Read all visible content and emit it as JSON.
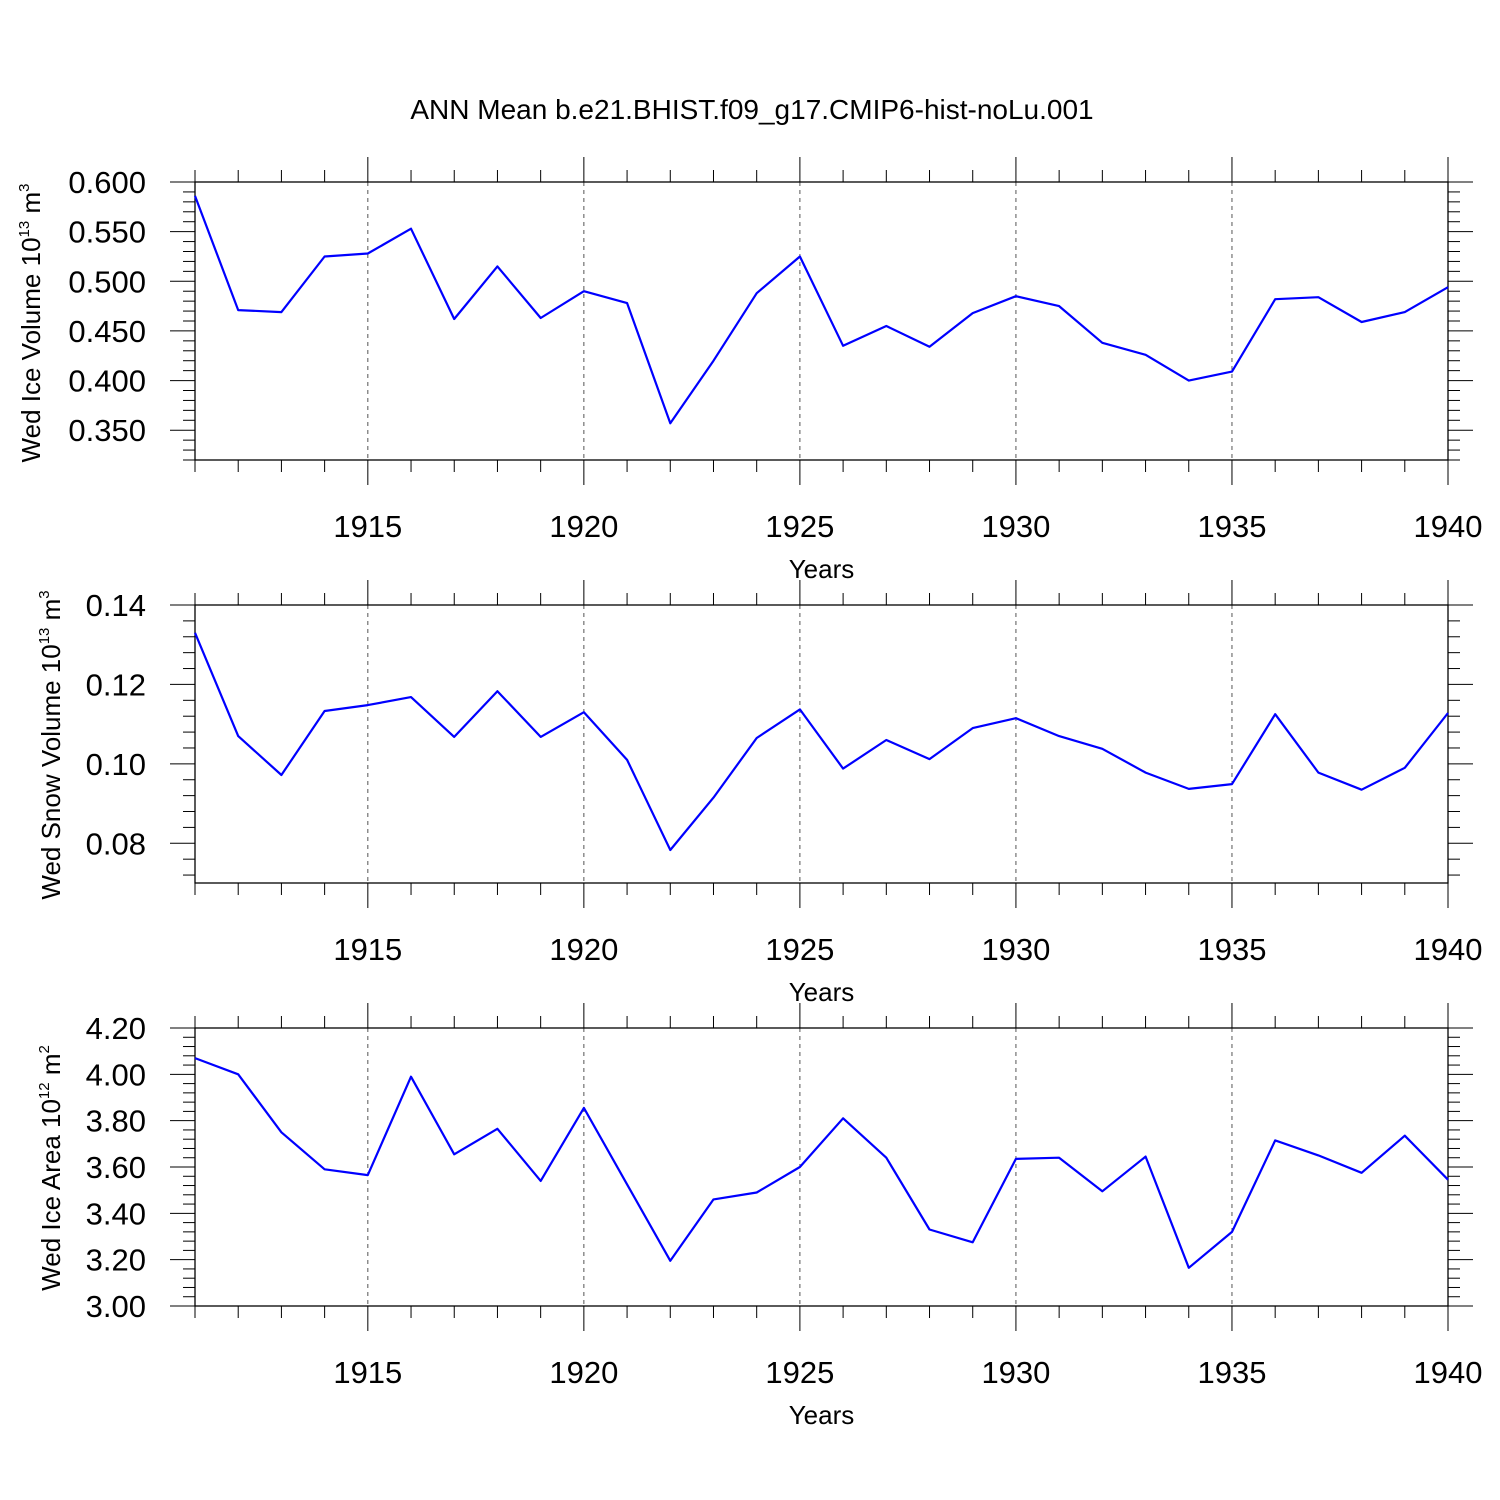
{
  "figure": {
    "title": "ANN Mean b.e21.BHIST.f09_g17.CMIP6-hist-noLu.001"
  },
  "chart_data": [
    {
      "type": "line",
      "title": "",
      "xlabel": "Years",
      "ylabel": {
        "text": "Wed Ice Volume 10",
        "exponent": "13",
        "unit": " m",
        "unit_exponent": "3"
      },
      "xlim": [
        1911,
        1940
      ],
      "ylim": [
        0.32,
        0.6
      ],
      "x_ticks": [
        1915,
        1920,
        1925,
        1930,
        1935,
        1940
      ],
      "y_ticks": [
        0.35,
        0.4,
        0.45,
        0.5,
        0.55,
        0.6
      ],
      "y_tick_labels": [
        "0.350",
        "0.400",
        "0.450",
        "0.500",
        "0.550",
        "0.600"
      ],
      "grid": "vertical dashed at major x ticks",
      "color": "#0000ff",
      "series": [
        {
          "x": [
            1911,
            1912,
            1913,
            1914,
            1915,
            1916,
            1917,
            1918,
            1919,
            1920,
            1921,
            1922,
            1923,
            1924,
            1925,
            1926,
            1927,
            1928,
            1929,
            1930,
            1931,
            1932,
            1933,
            1934,
            1935,
            1936,
            1937,
            1938,
            1939,
            1940
          ],
          "values": [
            0.586,
            0.471,
            0.469,
            0.525,
            0.528,
            0.553,
            0.462,
            0.515,
            0.463,
            0.49,
            0.478,
            0.357,
            0.42,
            0.488,
            0.525,
            0.435,
            0.455,
            0.434,
            0.468,
            0.485,
            0.475,
            0.438,
            0.426,
            0.4,
            0.409,
            0.482,
            0.484,
            0.459,
            0.469,
            0.494
          ]
        }
      ]
    },
    {
      "type": "line",
      "title": "",
      "xlabel": "Years",
      "ylabel": {
        "text": "Wed Snow Volume 10",
        "exponent": "13",
        "unit": " m",
        "unit_exponent": "3"
      },
      "xlim": [
        1911,
        1940
      ],
      "ylim": [
        0.07,
        0.14
      ],
      "x_ticks": [
        1915,
        1920,
        1925,
        1930,
        1935,
        1940
      ],
      "y_ticks": [
        0.08,
        0.1,
        0.12,
        0.14
      ],
      "y_tick_labels": [
        "0.08",
        "0.10",
        "0.12",
        "0.14"
      ],
      "grid": "vertical dashed at major x ticks",
      "color": "#0000ff",
      "series": [
        {
          "x": [
            1911,
            1912,
            1913,
            1914,
            1915,
            1916,
            1917,
            1918,
            1919,
            1920,
            1921,
            1922,
            1923,
            1924,
            1925,
            1926,
            1927,
            1928,
            1929,
            1930,
            1931,
            1932,
            1933,
            1934,
            1935,
            1936,
            1937,
            1938,
            1939,
            1940
          ],
          "values": [
            0.133,
            0.107,
            0.0972,
            0.1133,
            0.1148,
            0.1168,
            0.1068,
            0.1183,
            0.1068,
            0.113,
            0.101,
            0.0783,
            0.0915,
            0.1065,
            0.1137,
            0.0988,
            0.106,
            0.1012,
            0.109,
            0.1115,
            0.107,
            0.1038,
            0.0978,
            0.0937,
            0.0949,
            0.1125,
            0.0978,
            0.0935,
            0.099,
            0.1128
          ]
        }
      ]
    },
    {
      "type": "line",
      "title": "",
      "xlabel": "Years",
      "ylabel": {
        "text": "Wed Ice Area 10",
        "exponent": "12",
        "unit": " m",
        "unit_exponent": "2"
      },
      "xlim": [
        1911,
        1940
      ],
      "ylim": [
        3.0,
        4.2
      ],
      "x_ticks": [
        1915,
        1920,
        1925,
        1930,
        1935,
        1940
      ],
      "y_ticks": [
        3.0,
        3.2,
        3.4,
        3.6,
        3.8,
        4.0,
        4.2
      ],
      "y_tick_labels": [
        "3.00",
        "3.20",
        "3.40",
        "3.60",
        "3.80",
        "4.00",
        "4.20"
      ],
      "grid": "vertical dashed at major x ticks",
      "color": "#0000ff",
      "series": [
        {
          "x": [
            1911,
            1912,
            1913,
            1914,
            1915,
            1916,
            1917,
            1918,
            1919,
            1920,
            1921,
            1922,
            1923,
            1924,
            1925,
            1926,
            1927,
            1928,
            1929,
            1930,
            1931,
            1932,
            1933,
            1934,
            1935,
            1936,
            1937,
            1938,
            1939,
            1940
          ],
          "values": [
            4.07,
            4.0,
            3.75,
            3.59,
            3.565,
            3.99,
            3.655,
            3.765,
            3.54,
            3.855,
            3.525,
            3.195,
            3.46,
            3.49,
            3.6,
            3.81,
            3.64,
            3.33,
            3.275,
            3.635,
            3.64,
            3.495,
            3.645,
            3.165,
            3.32,
            3.715,
            3.65,
            3.575,
            3.735,
            3.545
          ]
        }
      ]
    }
  ]
}
